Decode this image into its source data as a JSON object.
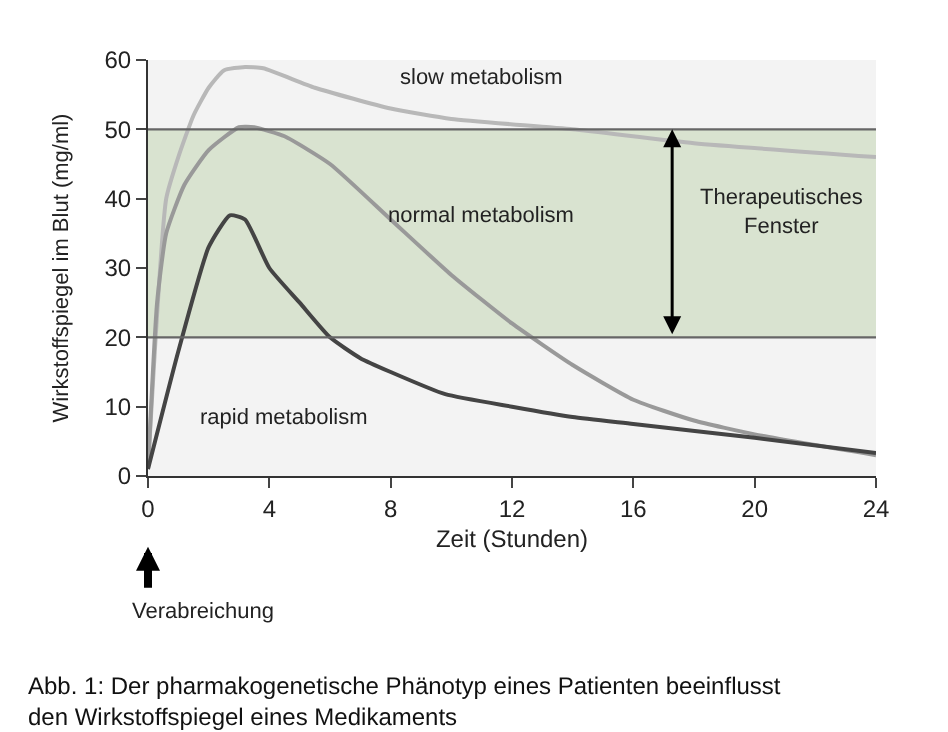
{
  "chart_data": {
    "type": "line",
    "xlabel": "Zeit (Stunden)",
    "ylabel": "Wirkstoffspiegel im Blut (mg/ml)",
    "xlim": [
      0,
      24
    ],
    "xticks": [
      0,
      4,
      8,
      12,
      16,
      20,
      24
    ],
    "ylim": [
      0,
      60
    ],
    "yticks": [
      0,
      10,
      20,
      30,
      40,
      50,
      60
    ],
    "grid": false,
    "legend": false,
    "series": [
      {
        "name": "slow metabolism",
        "color": "#b8b8b8",
        "x": [
          0,
          0.6,
          1,
          1.5,
          2,
          2.5,
          3.2,
          3.8,
          5.5,
          8,
          10,
          14,
          18,
          24
        ],
        "values": [
          1,
          40,
          46,
          52,
          56,
          58.5,
          59,
          58.8,
          56,
          53,
          51.5,
          50,
          48,
          46
        ]
      },
      {
        "name": "normal metabolism",
        "color": "#999999",
        "x": [
          0,
          0.3,
          0.6,
          1.2,
          2,
          3,
          3.5,
          4.5,
          6,
          8,
          10,
          12,
          14,
          16,
          18,
          20,
          24
        ],
        "values": [
          1,
          25,
          35,
          42,
          47,
          50.3,
          50.3,
          49,
          45,
          37,
          29,
          22,
          16,
          11,
          8,
          6,
          3
        ]
      },
      {
        "name": "rapid metabolism",
        "color": "#444444",
        "x": [
          0,
          1,
          2,
          2.7,
          3.2,
          4,
          5,
          6,
          7,
          8,
          9.8,
          12,
          14,
          16,
          20,
          24
        ],
        "values": [
          1,
          18,
          33,
          37.6,
          37,
          30,
          25,
          20,
          17,
          15,
          11.8,
          10,
          8.5,
          7.5,
          5.5,
          3.3
        ]
      }
    ],
    "bands": [
      {
        "axis": "y",
        "from": 20,
        "to": 50,
        "label": "Therapeutisches\nFenster",
        "color": "#d9e3d0"
      }
    ],
    "ref_lines": [
      {
        "axis": "y",
        "value": 20,
        "color": "#666666"
      },
      {
        "axis": "y",
        "value": 50,
        "color": "#666666"
      }
    ],
    "annotations": [
      "Verabreichung",
      "Abb. 1: Der pharmakogenetische Phänotyp eines Patienten beeinflusst\nden Wirkstoffspiegel eines Medikaments"
    ]
  }
}
